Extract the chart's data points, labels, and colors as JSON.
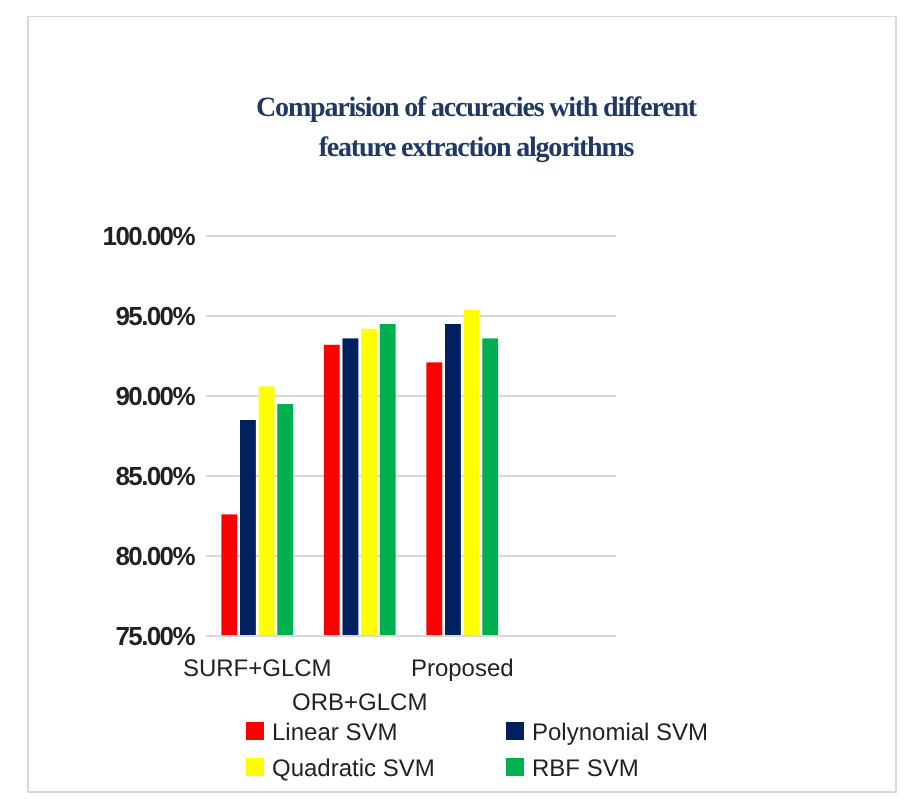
{
  "chart_data": {
    "type": "bar",
    "title": "Comparision of accuracies with different feature extraction algorithms",
    "categories": [
      "SURF+GLCM",
      "ORB+GLCM",
      "Proposed",
      null
    ],
    "series": [
      {
        "name": "Linear SVM",
        "color": "#ff0000",
        "values": [
          82.6,
          93.2,
          92.1,
          null
        ]
      },
      {
        "name": "Polynomial SVM",
        "color": "#002060",
        "values": [
          88.5,
          93.6,
          94.5,
          null
        ]
      },
      {
        "name": "Quadratic SVM",
        "color": "#ffff00",
        "values": [
          90.6,
          94.2,
          95.4,
          null
        ]
      },
      {
        "name": "RBF SVM",
        "color": "#00b050",
        "values": [
          89.5,
          94.5,
          93.6,
          null
        ]
      }
    ],
    "ylim": [
      75,
      100
    ],
    "yticks": [
      {
        "value": 75,
        "label": "75.00%"
      },
      {
        "value": 80,
        "label": "80.00%"
      },
      {
        "value": 85,
        "label": "85.00%"
      },
      {
        "value": 90,
        "label": "90.00%"
      },
      {
        "value": 95,
        "label": "95.00%"
      },
      {
        "value": 100,
        "label": "100.00%"
      }
    ],
    "grid": "y",
    "legend": "bottom"
  }
}
